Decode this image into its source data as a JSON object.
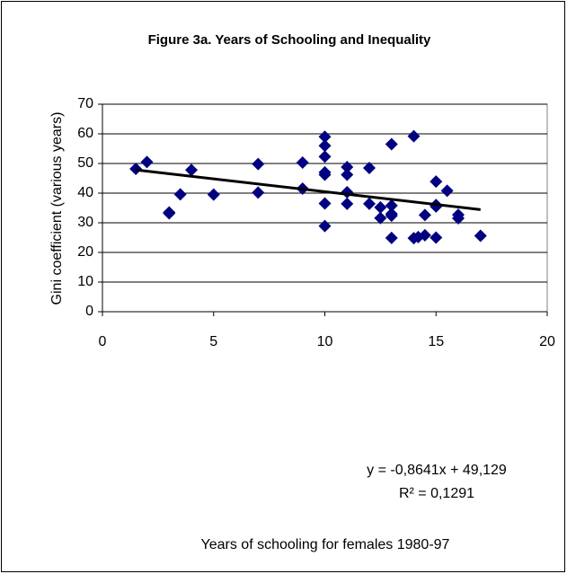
{
  "chart_data": {
    "type": "scatter",
    "title": "Figure 3a. Years of Schooling and Inequality",
    "x_label": "Years of schooling for females 1980-97",
    "y_label": "Gini coefficient (various years)",
    "color": "#000080",
    "x": [
      1.5,
      2,
      3,
      3,
      3.5,
      4,
      5,
      7,
      7,
      9,
      9,
      10,
      10,
      10,
      10,
      10,
      10,
      10,
      11,
      11,
      11,
      11,
      12,
      12,
      12.5,
      12.5,
      13,
      13,
      13,
      13,
      13,
      14,
      14,
      14.2,
      14.5,
      14.5,
      15,
      15,
      15,
      15,
      15.5,
      16,
      16,
      17
    ],
    "values": [
      48.2,
      50.5,
      33.5,
      33.2,
      39.6,
      47.8,
      39.5,
      49.8,
      40.2,
      50.3,
      41.5,
      59,
      56,
      52.3,
      47,
      46.2,
      36.5,
      28.9,
      48.8,
      46.2,
      40.3,
      36.4,
      48.5,
      36.4,
      35.2,
      31.6,
      56.5,
      35.8,
      33,
      32.4,
      24.9,
      59.2,
      24.8,
      25.2,
      32.6,
      25.8,
      43.9,
      36,
      35.5,
      25,
      40.8,
      32.7,
      31.5,
      25.6
    ],
    "trendline": {
      "x": [
        1.5,
        17
      ],
      "values": [
        47.83,
        34.44
      ],
      "color": "#000000"
    },
    "annotations": [
      "y = -0,8641x + 49,129",
      "R² = 0,1291"
    ],
    "xlim": [
      0,
      20
    ],
    "xticks": [
      0,
      5,
      10,
      15,
      20
    ],
    "ylim": [
      0,
      70
    ],
    "yticks": [
      0,
      10,
      20,
      30,
      40,
      50,
      60,
      70
    ],
    "grid": true
  }
}
